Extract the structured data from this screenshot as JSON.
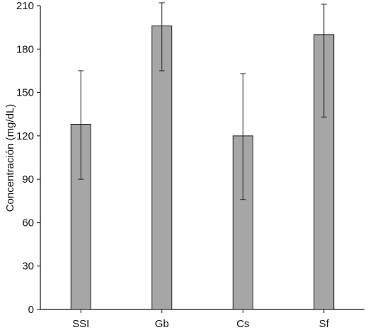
{
  "chart_data": {
    "type": "bar",
    "categories": [
      "SSI",
      "Gb",
      "Cs",
      "Sf"
    ],
    "values": [
      128,
      196,
      120,
      190
    ],
    "error_bars": {
      "upper": [
        165,
        212,
        163,
        211
      ],
      "lower": [
        90,
        165,
        76,
        133
      ]
    },
    "title": "",
    "xlabel": "",
    "ylabel": "Concentración (mg/dL)",
    "ylim": [
      0,
      210
    ],
    "yticks": [
      0,
      30,
      60,
      90,
      120,
      150,
      180,
      210
    ],
    "grid": false,
    "bar_color": "#a6a6a6",
    "legend": null
  }
}
